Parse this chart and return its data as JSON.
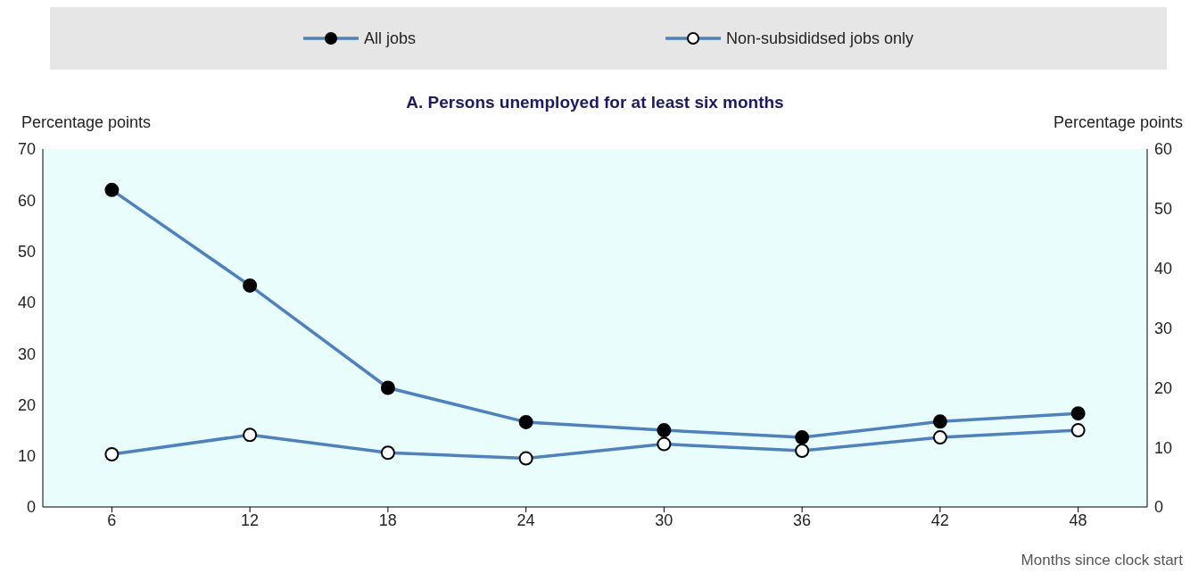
{
  "chart_data": {
    "type": "line",
    "title": "A. Persons unemployed for at least six months",
    "ylabel": "Percentage points",
    "y2label": "Percentage points",
    "xlabel": "Months since clock start",
    "categories": [
      "6",
      "12",
      "18",
      "24",
      "30",
      "36",
      "42",
      "48"
    ],
    "series": [
      {
        "name": "All jobs",
        "color": "#4f81bd",
        "values": [
          62.0,
          43.3,
          23.3,
          16.6,
          15.0,
          13.6,
          16.7,
          18.3
        ]
      },
      {
        "name": "Non-subsididsed jobs only",
        "color": "#4f81bd",
        "values": [
          10.3,
          14.1,
          10.6,
          9.5,
          12.3,
          11.0,
          13.6,
          15.0
        ]
      }
    ],
    "ylim": [
      0,
      70
    ],
    "yticks": [
      0,
      10,
      20,
      30,
      40,
      50,
      60,
      70
    ],
    "y2lim": [
      0,
      60
    ],
    "y2ticks": [
      0,
      10,
      20,
      30,
      40,
      50,
      60
    ],
    "grid": false,
    "legend": "top",
    "marker": "circle",
    "line_style": "solid"
  }
}
